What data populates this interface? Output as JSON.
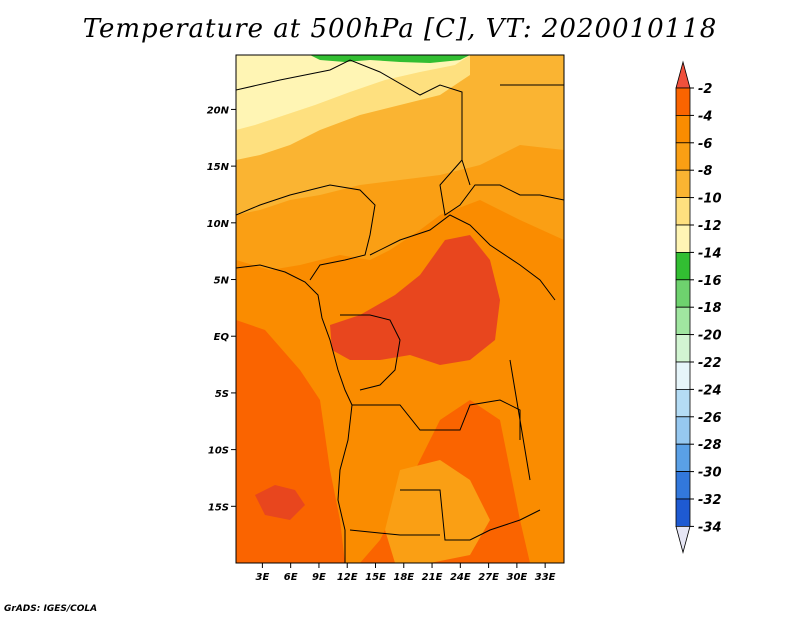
{
  "title": "Temperature at 500hPa [C], VT: 2020010118",
  "credit": "GrADS: IGES/COLA",
  "map": {
    "lat_ticks": [
      "20N",
      "15N",
      "10N",
      "5N",
      "EQ",
      "5S",
      "10S",
      "15S"
    ],
    "lat_values": [
      20,
      15,
      10,
      5,
      0,
      -5,
      -10,
      -15
    ],
    "lon_ticks": [
      "3E",
      "6E",
      "9E",
      "12E",
      "15E",
      "18E",
      "21E",
      "24E",
      "27E",
      "30E",
      "33E"
    ],
    "lon_values": [
      3,
      6,
      9,
      12,
      15,
      18,
      21,
      24,
      27,
      30,
      33
    ],
    "lon_range": [
      0.2,
      35
    ],
    "lat_range": [
      -20,
      24.8
    ]
  },
  "colorbar": {
    "labels": [
      "-2",
      "-4",
      "-6",
      "-8",
      "-10",
      "-12",
      "-14",
      "-16",
      "-18",
      "-20",
      "-22",
      "-24",
      "-26",
      "-28",
      "-30",
      "-32",
      "-34"
    ],
    "colors": {
      "top_arrow": "#f0503c",
      "bottom_arrow": "#e6e6f5",
      "bands": [
        "#fa6400",
        "#fa8c00",
        "#fa9f14",
        "#fab432",
        "#fee07f",
        "#fff5b4",
        "#32be32",
        "#6ed26e",
        "#a0e6a0",
        "#d2f5d2",
        "#e6f5fa",
        "#b4dcf5",
        "#96c8f0",
        "#5aa0e6",
        "#3278dc",
        "#1e5ad2",
        "#1446b4",
        "#0a0a78"
      ]
    }
  },
  "field_colors": {
    "very_hot": "#e8461e",
    "hot": "#fa6400",
    "warm": "#fa8c00",
    "mid": "#fa9f14",
    "mild": "#fab432",
    "cool": "#fee07f",
    "cold": "#fff5b4",
    "green": "#32be32"
  }
}
